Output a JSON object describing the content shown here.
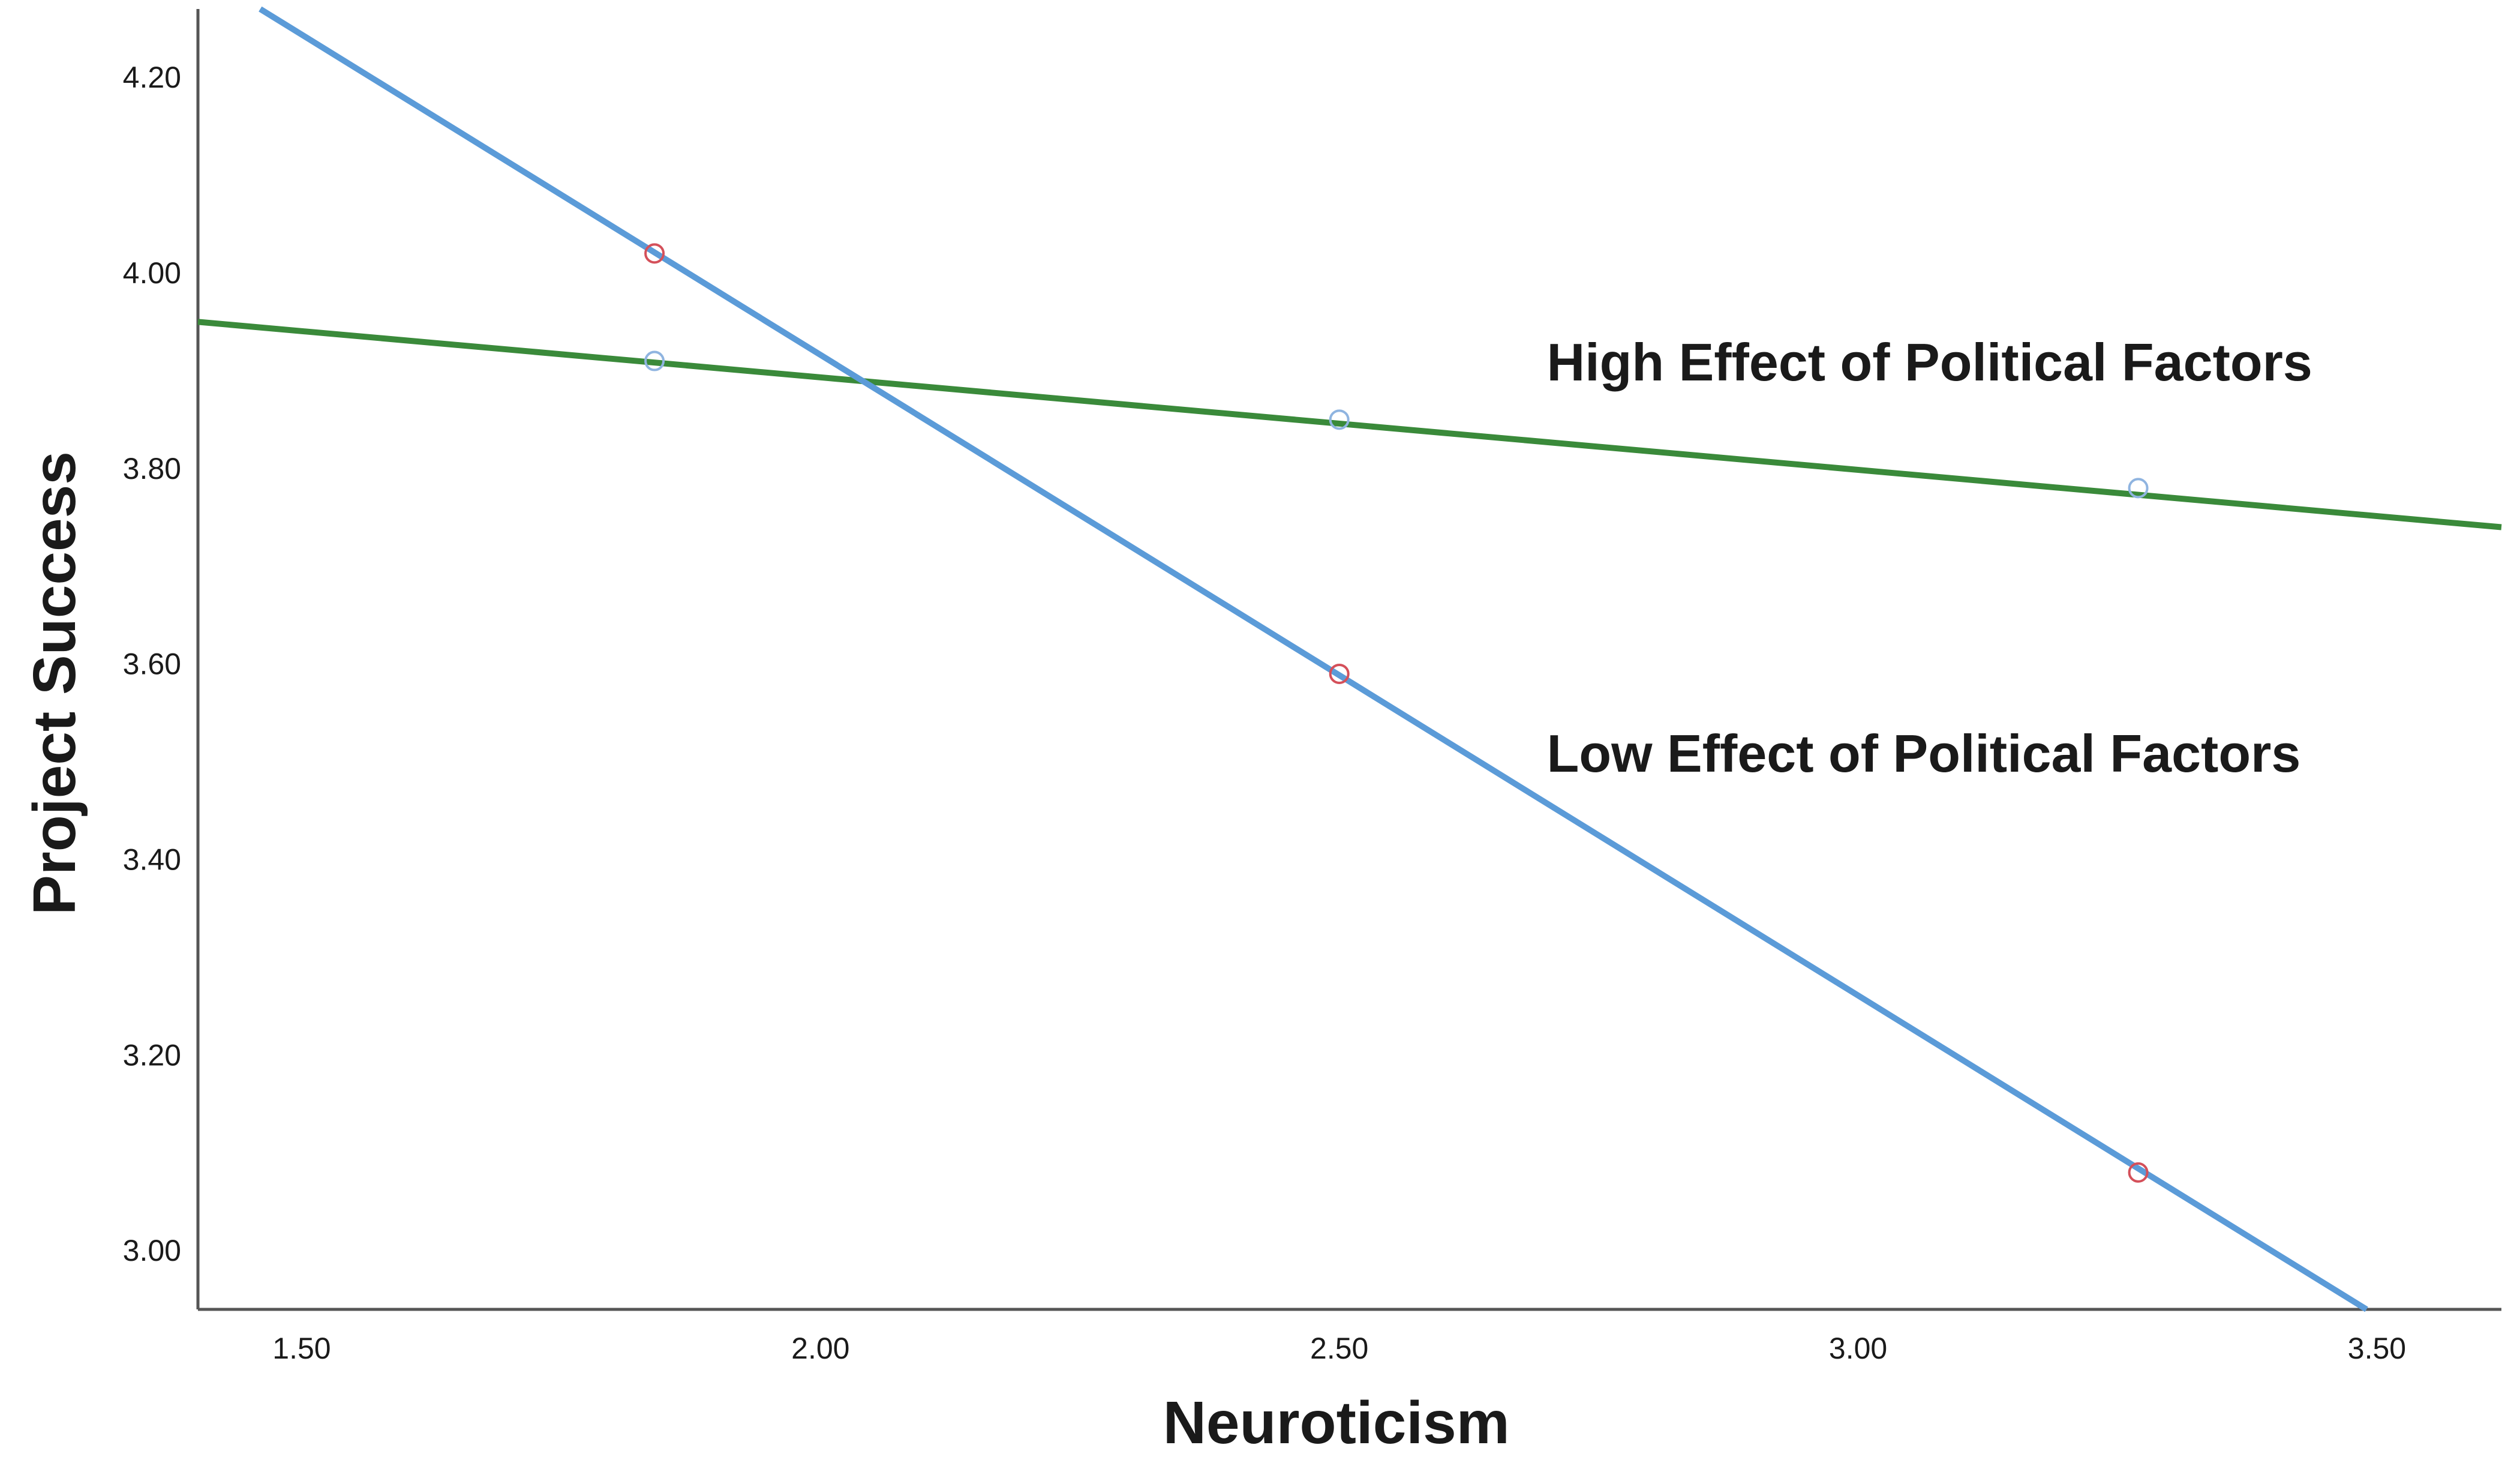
{
  "chart_data": {
    "type": "line",
    "title": "",
    "xlabel": "Neuroticism",
    "ylabel": "Project Success",
    "xlim": [
      1.4,
      3.62
    ],
    "ylim": [
      2.94,
      4.27
    ],
    "x_ticks": [
      1.5,
      2.0,
      2.5,
      3.0,
      3.5
    ],
    "x_tick_labels": [
      "1.50",
      "2.00",
      "2.50",
      "3.00",
      "3.50"
    ],
    "y_ticks": [
      3.0,
      3.2,
      3.4,
      3.6,
      3.8,
      4.0,
      4.2
    ],
    "y_tick_labels": [
      "3.00",
      "3.20",
      "3.40",
      "3.60",
      "3.80",
      "4.00",
      "4.20"
    ],
    "grid": false,
    "series": [
      {
        "name": "High Effect of Political Factors",
        "color": "#3a8a3a",
        "marker_color": "#8fb4e0",
        "line_x": [
          1.4,
          3.62
        ],
        "line_y": [
          3.95,
          3.74
        ],
        "x": [
          1.84,
          2.5,
          3.27
        ],
        "y": [
          3.91,
          3.85,
          3.78
        ]
      },
      {
        "name": "Low Effect of Political Factors",
        "color": "#5b9bd8",
        "marker_color": "#d4505a",
        "line_x": [
          1.46,
          3.49
        ],
        "line_y": [
          4.27,
          2.94
        ],
        "x": [
          1.84,
          2.5,
          3.27
        ],
        "y": [
          4.02,
          3.59,
          3.08
        ]
      }
    ],
    "annotations": [
      {
        "text": "High Effect of Political Factors",
        "x": 2.7,
        "y": 3.89,
        "series": 0
      },
      {
        "text": "Low Effect of Political Factors",
        "x": 2.7,
        "y": 3.49,
        "series": 1
      }
    ]
  }
}
